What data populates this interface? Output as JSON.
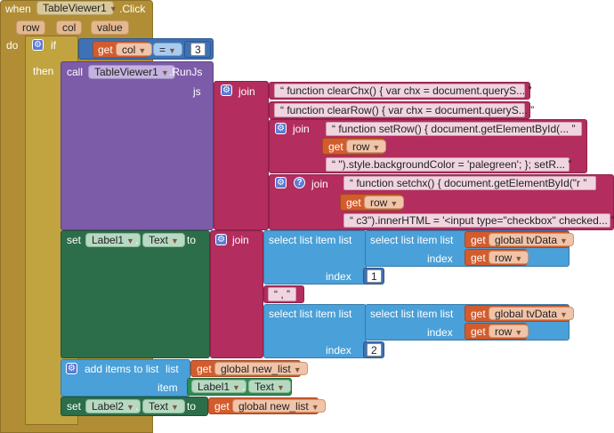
{
  "event": {
    "when": "when",
    "component": "TableViewer1",
    "event_name": ".Click",
    "params": [
      "row",
      "col",
      "value"
    ],
    "do": "do"
  },
  "if_block": {
    "if": "if",
    "then": "then",
    "get": "get",
    "var": "col",
    "op": "=",
    "value": "3"
  },
  "call": {
    "call": "call",
    "component": "TableViewer1",
    "method": ".RunJs",
    "socket": "js"
  },
  "join1": {
    "label": "join",
    "items": [
      "function clearChx() {  var chx = document.queryS...",
      "function clearRow() {  var chx = document.queryS..."
    ]
  },
  "join2": {
    "label": "join",
    "str1": "function setRow() {      document.getElementById(...",
    "get": "get",
    "var": "row",
    "str2": "\").style.backgroundColor = 'palegreen'; };  setR..."
  },
  "join3": {
    "label": "join",
    "str1": "function setchx() {      document.getElementById(\"r",
    "get": "get",
    "var": "row",
    "str2": "c3\").innerHTML = '<input type=\"checkbox\" checked..."
  },
  "set1": {
    "set": "set",
    "component": "Label1",
    "property": "Text",
    "to": "to",
    "join": "join",
    "select_outer": "select list item  list",
    "select_inner": "select list item  list",
    "get": "get",
    "global_var": "global tvData",
    "index": "index",
    "row": "row",
    "index1_value": "1",
    "sep": ",",
    "index2_value": "2"
  },
  "add": {
    "label": "add items to list",
    "list": "list",
    "get": "get",
    "global_var": "global new_list",
    "item": "item",
    "component": "Label1",
    "property": "Text"
  },
  "set2": {
    "set": "set",
    "component": "Label2",
    "property": "Text",
    "to": "to",
    "get": "get",
    "global_var": "global new_list"
  }
}
